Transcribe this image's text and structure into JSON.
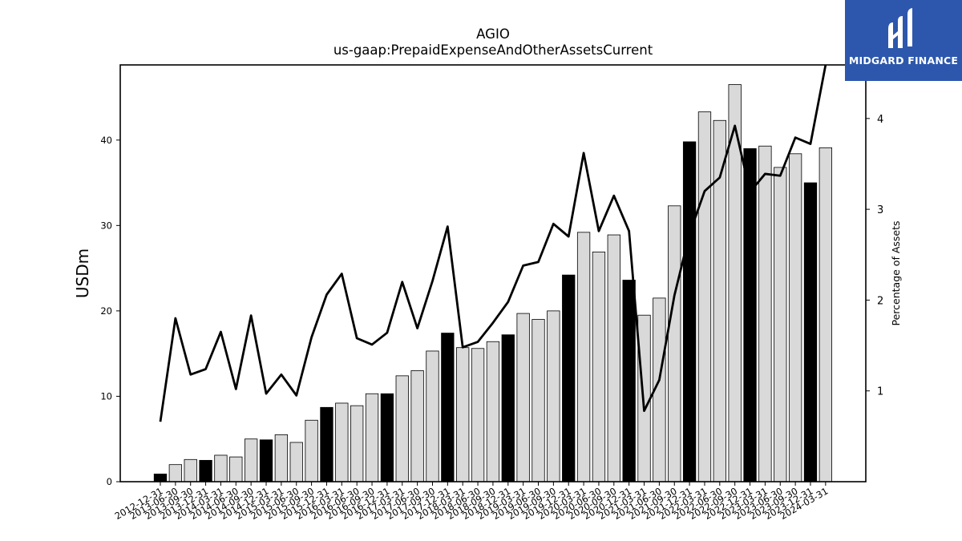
{
  "chart_data": {
    "type": "bar",
    "title": "AGIO",
    "subtitle": "us-gaap:PrepaidExpenseAndOtherAssetsCurrent",
    "ylabel": "USDm",
    "y2label": "Percentage of Assets",
    "ylim": [
      0,
      48.8
    ],
    "y2lim": [
      0,
      4.59
    ],
    "yticks": [
      0,
      10,
      20,
      30,
      40
    ],
    "y2ticks": [
      1,
      2,
      3,
      4
    ],
    "categories": [
      "2012-12-31",
      "2013-06-30",
      "2013-09-30",
      "2013-12-31",
      "2014-03-31",
      "2014-06-30",
      "2014-09-30",
      "2014-12-31",
      "2015-03-31",
      "2015-06-30",
      "2015-09-30",
      "2015-12-31",
      "2016-03-31",
      "2016-06-30",
      "2016-09-30",
      "2016-12-31",
      "2017-03-31",
      "2017-06-30",
      "2017-09-30",
      "2017-12-31",
      "2018-03-31",
      "2018-06-30",
      "2018-09-30",
      "2018-12-31",
      "2019-03-31",
      "2019-06-30",
      "2019-09-30",
      "2019-12-31",
      "2020-03-31",
      "2020-06-30",
      "2020-09-30",
      "2020-12-31",
      "2021-03-31",
      "2021-06-30",
      "2021-09-30",
      "2021-12-31",
      "2022-03-31",
      "2022-06-30",
      "2022-09-30",
      "2022-12-31",
      "2023-03-31",
      "2023-06-30",
      "2023-09-30",
      "2023-12-31",
      "2024-03-31"
    ],
    "series": [
      {
        "type": "bar",
        "axis": "left",
        "values": [
          0.9,
          2.0,
          2.6,
          2.5,
          3.1,
          2.9,
          5.0,
          4.9,
          5.5,
          4.6,
          7.2,
          8.7,
          9.2,
          8.9,
          10.3,
          10.3,
          12.4,
          13.0,
          15.3,
          17.4,
          15.7,
          15.6,
          16.4,
          17.2,
          19.7,
          19.0,
          20.0,
          24.2,
          29.2,
          26.9,
          28.9,
          23.6,
          19.5,
          21.5,
          32.3,
          39.8,
          43.3,
          42.3,
          46.5,
          39.0,
          39.3,
          36.8,
          38.4,
          35.0,
          39.1
        ],
        "dark": [
          true,
          false,
          false,
          true,
          false,
          false,
          false,
          true,
          false,
          false,
          false,
          true,
          false,
          false,
          false,
          true,
          false,
          false,
          false,
          true,
          false,
          false,
          false,
          true,
          false,
          false,
          false,
          true,
          false,
          false,
          false,
          true,
          false,
          false,
          false,
          true,
          false,
          false,
          false,
          true,
          false,
          false,
          false,
          true,
          false
        ]
      },
      {
        "type": "line",
        "axis": "right",
        "values": [
          0.66,
          1.8,
          1.18,
          1.24,
          1.65,
          1.02,
          1.83,
          0.97,
          1.18,
          0.95,
          1.59,
          2.06,
          2.29,
          1.58,
          1.51,
          1.64,
          2.2,
          1.69,
          2.21,
          2.81,
          1.48,
          1.54,
          1.75,
          1.98,
          2.38,
          2.42,
          2.84,
          2.7,
          3.62,
          2.76,
          3.15,
          2.76,
          0.78,
          1.12,
          2.05,
          2.73,
          3.2,
          3.35,
          3.92,
          3.19,
          3.39,
          3.37,
          3.79,
          3.72,
          4.59
        ]
      }
    ],
    "colors": {
      "bar_light": "#d9d9d9",
      "bar_dark": "#000000",
      "line": "#000000"
    }
  },
  "logo": {
    "text": "MIDGARD FINANCE",
    "color": "#2c57ac"
  }
}
